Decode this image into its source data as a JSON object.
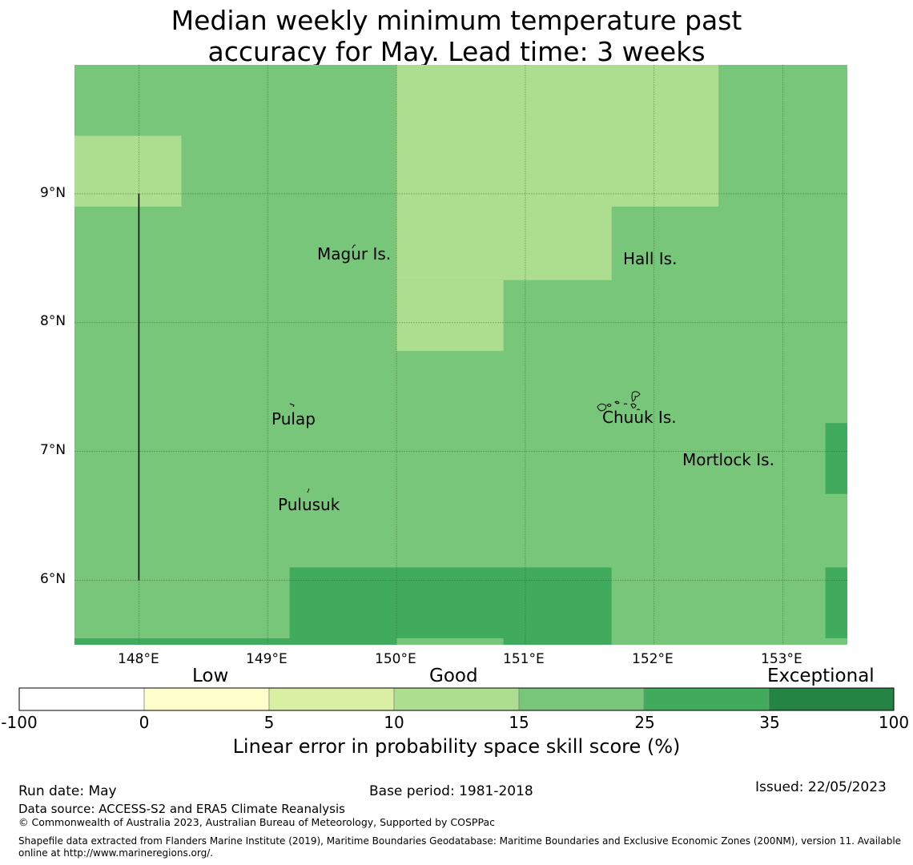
{
  "title_line1": "Median weekly minimum temperature past",
  "title_line2": "accuracy for May. Lead time: 3 weeks",
  "map": {
    "lon_range": [
      147.5,
      153.5
    ],
    "lat_range": [
      5.5,
      10.0
    ],
    "lon_ticks": [
      "148°E",
      "149°E",
      "150°E",
      "151°E",
      "152°E",
      "153°E"
    ],
    "lat_ticks": [
      "9°N",
      "8°N",
      "7°N",
      "6°N"
    ],
    "places": [
      {
        "name": "Magur Is.",
        "lon": 149.68,
        "lat": 8.53
      },
      {
        "name": "Hall Is.",
        "lon": 151.97,
        "lat": 8.49
      },
      {
        "name": "Pulap",
        "lon": 149.21,
        "lat": 7.25
      },
      {
        "name": "Chuuk Is.",
        "lon": 151.87,
        "lat": 7.26
      },
      {
        "name": "Mortlock Is.",
        "lon": 152.59,
        "lat": 6.93
      },
      {
        "name": "Pulusuk",
        "lon": 149.33,
        "lat": 6.59
      }
    ],
    "skill_regions": [
      {
        "lon": [
          147.5,
          153.5
        ],
        "lat": [
          5.5,
          10.0
        ],
        "class": "15-25"
      },
      {
        "lon": [
          147.5,
          148.33
        ],
        "lat": [
          8.9,
          9.45
        ],
        "class": "10-15"
      },
      {
        "lon": [
          150.0,
          152.5
        ],
        "lat": [
          8.9,
          10.0
        ],
        "class": "10-15"
      },
      {
        "lon": [
          150.0,
          151.67
        ],
        "lat": [
          8.33,
          8.9
        ],
        "class": "10-15"
      },
      {
        "lon": [
          150.0,
          150.83
        ],
        "lat": [
          7.78,
          8.33
        ],
        "class": "10-15"
      },
      {
        "lon": [
          149.17,
          151.67
        ],
        "lat": [
          5.5,
          6.1
        ],
        "class": "25-35"
      },
      {
        "lon": [
          147.5,
          149.17
        ],
        "lat": [
          5.5,
          5.55
        ],
        "class": "25-35"
      },
      {
        "lon": [
          150.0,
          150.83
        ],
        "lat": [
          5.5,
          5.55
        ],
        "class": "15-25"
      },
      {
        "lon": [
          153.33,
          153.5
        ],
        "lat": [
          6.67,
          7.22
        ],
        "class": "25-35"
      },
      {
        "lon": [
          153.33,
          153.5
        ],
        "lat": [
          5.55,
          6.1
        ],
        "class": "25-35"
      }
    ],
    "boundary_line": {
      "lon": 148.0,
      "lat": [
        6.0,
        9.0
      ]
    }
  },
  "colorbar": {
    "categories": [
      "Low",
      "Good",
      "Exceptional"
    ],
    "ticks": [
      "-100",
      "0",
      "5",
      "10",
      "15",
      "25",
      "35",
      "100"
    ],
    "colors": [
      "#ffffff",
      "#ffffcc",
      "#d9f0a3",
      "#addd8e",
      "#78c679",
      "#41ab5d",
      "#238443"
    ],
    "label": "Linear error in probability space skill score (%)"
  },
  "footer": {
    "run_date": "Run date: May",
    "base_period": "Base period: 1981-2018",
    "issued": "Issued: 22/05/2023",
    "data_source": "Data source: ACCESS-S2 and ERA5 Climate Reanalysis",
    "copyright": "© Commonwealth of Australia 2023, Australian Bureau of Meteorology, Supported by COSPPac",
    "shapefile_line1": "Shapefile data extracted from Flanders Marine Institute (2019), Maritime Boundaries Geodatabase: Maritime Boundaries and Exclusive Economic Zones (200NM), version 11. Available",
    "shapefile_line2": "online at http://www.marineregions.org/."
  }
}
